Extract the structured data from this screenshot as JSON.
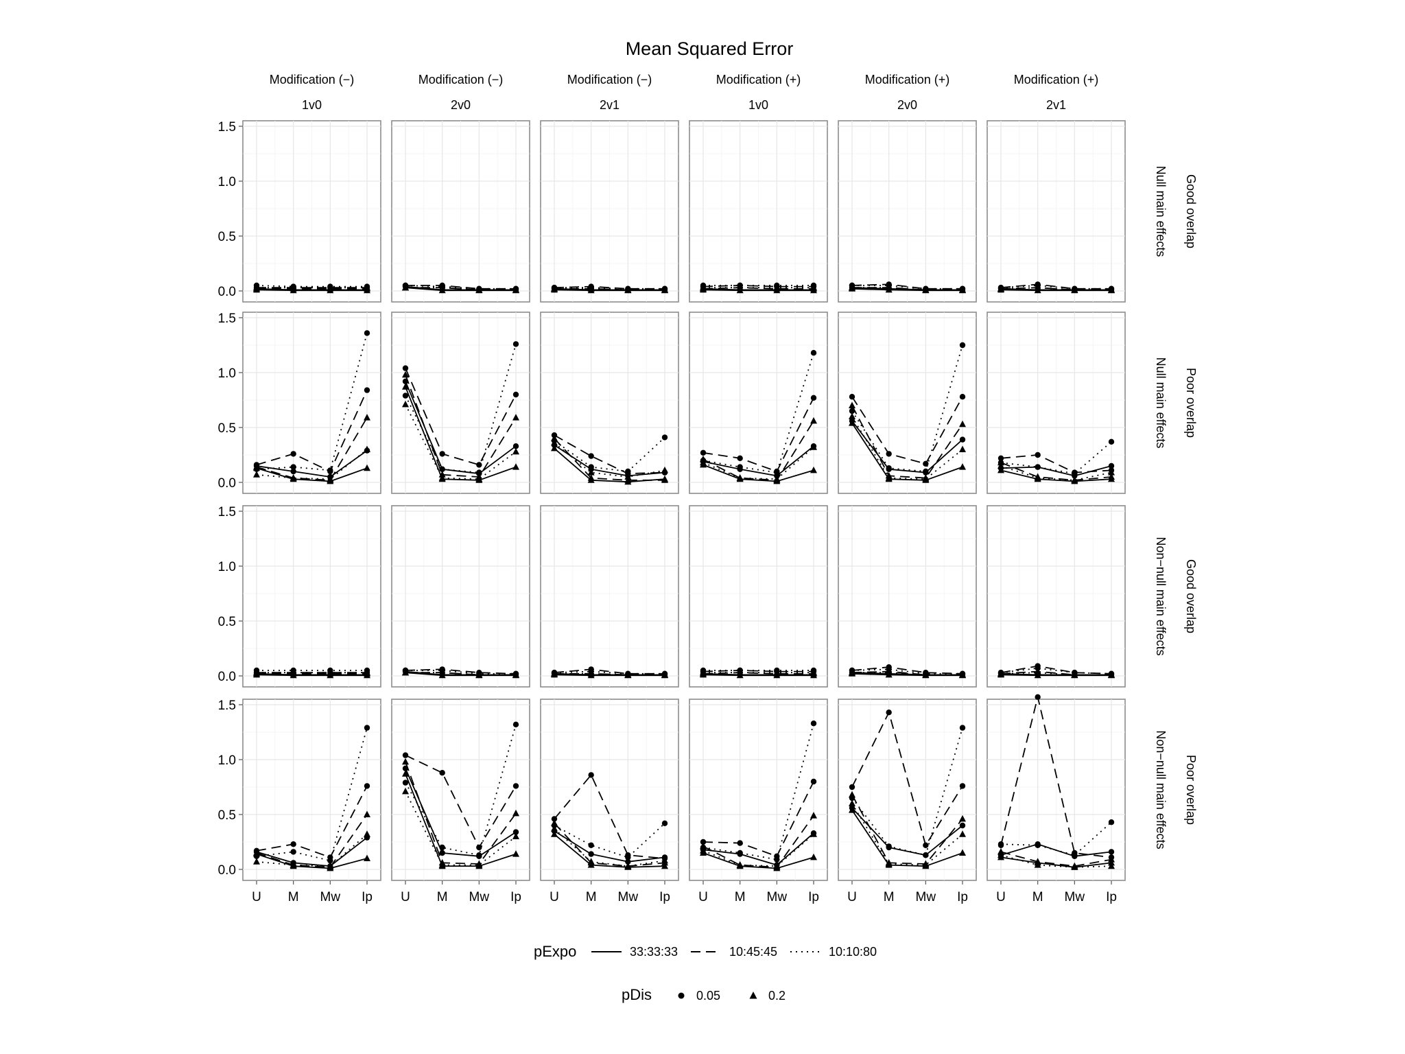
{
  "chart_data": {
    "type": "line",
    "title": "Mean Squared Error",
    "categories": [
      "U",
      "M",
      "Mw",
      "Ip"
    ],
    "y_ticks": [
      "0.0",
      "0.5",
      "1.0",
      "1.5"
    ],
    "ylim": [
      -0.1,
      1.55
    ],
    "columns": [
      {
        "top": "Modification (−)",
        "bottom": "1v0"
      },
      {
        "top": "Modification (−)",
        "bottom": "2v0"
      },
      {
        "top": "Modification (−)",
        "bottom": "2v1"
      },
      {
        "top": "Modification (+)",
        "bottom": "1v0"
      },
      {
        "top": "Modification (+)",
        "bottom": "2v0"
      },
      {
        "top": "Modification (+)",
        "bottom": "2v1"
      }
    ],
    "rows": [
      {
        "outer": "Good overlap",
        "inner": "Null main effects"
      },
      {
        "outer": "Poor overlap",
        "inner": "Null main effects"
      },
      {
        "outer": "Good overlap",
        "inner": "Non−null main effects"
      },
      {
        "outer": "Poor overlap",
        "inner": "Non−null main effects"
      }
    ],
    "legend": {
      "pExpo_title": "pExpo",
      "pExpo": [
        {
          "label": "33:33:33",
          "dash": "solid"
        },
        {
          "label": "10:45:45",
          "dash": "dashed"
        },
        {
          "label": "10:10:80",
          "dash": "dotted"
        }
      ],
      "pDis_title": "pDis",
      "pDis": [
        {
          "label": "0.05",
          "shape": "circle"
        },
        {
          "label": "0.2",
          "shape": "triangle"
        }
      ]
    },
    "series_order": [
      {
        "pExpo": "33:33:33",
        "pDis": "0.05"
      },
      {
        "pExpo": "33:33:33",
        "pDis": "0.2"
      },
      {
        "pExpo": "10:45:45",
        "pDis": "0.05"
      },
      {
        "pExpo": "10:45:45",
        "pDis": "0.2"
      },
      {
        "pExpo": "10:10:80",
        "pDis": "0.05"
      },
      {
        "pExpo": "10:10:80",
        "pDis": "0.2"
      }
    ],
    "panels": [
      [
        [
          [
            0.02,
            0.01,
            0.01,
            0.01
          ],
          [
            0.01,
            0.005,
            0.005,
            0.005
          ],
          [
            0.03,
            0.03,
            0.03,
            0.03
          ],
          [
            0.02,
            0.02,
            0.02,
            0.02
          ],
          [
            0.05,
            0.04,
            0.04,
            0.04
          ],
          [
            0.03,
            0.03,
            0.03,
            0.03
          ]
        ],
        [
          [
            0.04,
            0.01,
            0.01,
            0.01
          ],
          [
            0.03,
            0.005,
            0.005,
            0.005
          ],
          [
            0.05,
            0.05,
            0.02,
            0.02
          ],
          [
            0.03,
            0.03,
            0.01,
            0.01
          ],
          [
            0.05,
            0.04,
            0.02,
            0.02
          ],
          [
            0.03,
            0.03,
            0.01,
            0.01
          ]
        ],
        [
          [
            0.02,
            0.01,
            0.01,
            0.01
          ],
          [
            0.01,
            0.005,
            0.005,
            0.005
          ],
          [
            0.03,
            0.04,
            0.02,
            0.02
          ],
          [
            0.02,
            0.02,
            0.01,
            0.01
          ],
          [
            0.03,
            0.03,
            0.02,
            0.02
          ],
          [
            0.02,
            0.02,
            0.01,
            0.01
          ]
        ],
        [
          [
            0.02,
            0.01,
            0.01,
            0.01
          ],
          [
            0.01,
            0.005,
            0.005,
            0.005
          ],
          [
            0.04,
            0.05,
            0.04,
            0.04
          ],
          [
            0.02,
            0.03,
            0.02,
            0.02
          ],
          [
            0.05,
            0.05,
            0.05,
            0.05
          ],
          [
            0.03,
            0.03,
            0.03,
            0.03
          ]
        ],
        [
          [
            0.03,
            0.02,
            0.01,
            0.01
          ],
          [
            0.02,
            0.01,
            0.005,
            0.005
          ],
          [
            0.05,
            0.06,
            0.02,
            0.02
          ],
          [
            0.03,
            0.03,
            0.01,
            0.01
          ],
          [
            0.05,
            0.05,
            0.02,
            0.02
          ],
          [
            0.03,
            0.03,
            0.01,
            0.01
          ]
        ],
        [
          [
            0.02,
            0.01,
            0.01,
            0.01
          ],
          [
            0.01,
            0.005,
            0.005,
            0.005
          ],
          [
            0.03,
            0.06,
            0.02,
            0.02
          ],
          [
            0.02,
            0.03,
            0.01,
            0.01
          ],
          [
            0.03,
            0.05,
            0.02,
            0.02
          ],
          [
            0.02,
            0.03,
            0.01,
            0.01
          ]
        ]
      ],
      [
        [
          [
            0.15,
            0.1,
            0.05,
            0.29
          ],
          [
            0.13,
            0.03,
            0.01,
            0.13
          ],
          [
            0.16,
            0.26,
            0.1,
            0.84
          ],
          [
            0.14,
            0.04,
            0.02,
            0.59
          ],
          [
            0.12,
            0.14,
            0.11,
            1.36
          ],
          [
            0.07,
            0.04,
            0.03,
            0.3
          ]
        ],
        [
          [
            0.92,
            0.12,
            0.08,
            0.33
          ],
          [
            0.87,
            0.03,
            0.02,
            0.14
          ],
          [
            1.04,
            0.26,
            0.16,
            0.8
          ],
          [
            0.98,
            0.07,
            0.05,
            0.59
          ],
          [
            0.79,
            0.12,
            0.09,
            1.26
          ],
          [
            0.71,
            0.04,
            0.03,
            0.28
          ]
        ],
        [
          [
            0.34,
            0.12,
            0.06,
            0.09
          ],
          [
            0.31,
            0.02,
            0.005,
            0.03
          ],
          [
            0.43,
            0.24,
            0.08,
            0.09
          ],
          [
            0.4,
            0.04,
            0.02,
            0.02
          ],
          [
            0.38,
            0.14,
            0.1,
            0.41
          ],
          [
            0.36,
            0.09,
            0.05,
            0.11
          ]
        ],
        [
          [
            0.19,
            0.12,
            0.06,
            0.33
          ],
          [
            0.16,
            0.03,
            0.01,
            0.11
          ],
          [
            0.27,
            0.22,
            0.1,
            0.77
          ],
          [
            0.21,
            0.04,
            0.02,
            0.56
          ],
          [
            0.2,
            0.14,
            0.09,
            1.18
          ],
          [
            0.18,
            0.04,
            0.03,
            0.32
          ]
        ],
        [
          [
            0.56,
            0.12,
            0.09,
            0.39
          ],
          [
            0.54,
            0.03,
            0.02,
            0.14
          ],
          [
            0.78,
            0.26,
            0.17,
            0.78
          ],
          [
            0.7,
            0.06,
            0.04,
            0.53
          ],
          [
            0.65,
            0.13,
            0.1,
            1.25
          ],
          [
            0.6,
            0.04,
            0.03,
            0.3
          ]
        ],
        [
          [
            0.13,
            0.14,
            0.06,
            0.15
          ],
          [
            0.11,
            0.03,
            0.01,
            0.03
          ],
          [
            0.22,
            0.25,
            0.09,
            0.11
          ],
          [
            0.18,
            0.05,
            0.02,
            0.05
          ],
          [
            0.18,
            0.14,
            0.08,
            0.37
          ],
          [
            0.15,
            0.04,
            0.02,
            0.09
          ]
        ]
      ],
      [
        [
          [
            0.02,
            0.01,
            0.01,
            0.01
          ],
          [
            0.01,
            0.005,
            0.005,
            0.005
          ],
          [
            0.03,
            0.03,
            0.03,
            0.03
          ],
          [
            0.02,
            0.02,
            0.02,
            0.02
          ],
          [
            0.05,
            0.05,
            0.05,
            0.05
          ],
          [
            0.03,
            0.03,
            0.03,
            0.03
          ]
        ],
        [
          [
            0.04,
            0.01,
            0.01,
            0.01
          ],
          [
            0.03,
            0.005,
            0.005,
            0.005
          ],
          [
            0.05,
            0.06,
            0.03,
            0.02
          ],
          [
            0.03,
            0.03,
            0.01,
            0.01
          ],
          [
            0.05,
            0.05,
            0.02,
            0.02
          ],
          [
            0.03,
            0.03,
            0.01,
            0.01
          ]
        ],
        [
          [
            0.02,
            0.01,
            0.01,
            0.01
          ],
          [
            0.01,
            0.005,
            0.005,
            0.005
          ],
          [
            0.03,
            0.06,
            0.02,
            0.02
          ],
          [
            0.02,
            0.02,
            0.01,
            0.01
          ],
          [
            0.03,
            0.04,
            0.02,
            0.02
          ],
          [
            0.02,
            0.02,
            0.01,
            0.01
          ]
        ],
        [
          [
            0.02,
            0.01,
            0.01,
            0.01
          ],
          [
            0.01,
            0.005,
            0.005,
            0.005
          ],
          [
            0.04,
            0.05,
            0.04,
            0.04
          ],
          [
            0.02,
            0.03,
            0.02,
            0.02
          ],
          [
            0.05,
            0.05,
            0.05,
            0.05
          ],
          [
            0.03,
            0.03,
            0.03,
            0.03
          ]
        ],
        [
          [
            0.03,
            0.02,
            0.01,
            0.01
          ],
          [
            0.02,
            0.01,
            0.005,
            0.005
          ],
          [
            0.05,
            0.08,
            0.03,
            0.02
          ],
          [
            0.03,
            0.04,
            0.01,
            0.01
          ],
          [
            0.05,
            0.06,
            0.02,
            0.02
          ],
          [
            0.03,
            0.03,
            0.01,
            0.01
          ]
        ],
        [
          [
            0.02,
            0.01,
            0.01,
            0.01
          ],
          [
            0.01,
            0.005,
            0.005,
            0.005
          ],
          [
            0.03,
            0.09,
            0.03,
            0.02
          ],
          [
            0.02,
            0.04,
            0.01,
            0.01
          ],
          [
            0.03,
            0.07,
            0.03,
            0.02
          ],
          [
            0.02,
            0.03,
            0.01,
            0.01
          ]
        ]
      ],
      [
        [
          [
            0.16,
            0.06,
            0.03,
            0.29
          ],
          [
            0.14,
            0.03,
            0.01,
            0.1
          ],
          [
            0.17,
            0.23,
            0.11,
            0.76
          ],
          [
            0.15,
            0.04,
            0.02,
            0.5
          ],
          [
            0.12,
            0.16,
            0.08,
            1.29
          ],
          [
            0.07,
            0.04,
            0.03,
            0.32
          ]
        ],
        [
          [
            0.92,
            0.15,
            0.12,
            0.34
          ],
          [
            0.87,
            0.03,
            0.03,
            0.14
          ],
          [
            1.04,
            0.88,
            0.2,
            0.76
          ],
          [
            0.98,
            0.06,
            0.05,
            0.51
          ],
          [
            0.79,
            0.2,
            0.13,
            1.32
          ],
          [
            0.71,
            0.04,
            0.04,
            0.3
          ]
        ],
        [
          [
            0.35,
            0.14,
            0.07,
            0.11
          ],
          [
            0.32,
            0.04,
            0.02,
            0.03
          ],
          [
            0.46,
            0.86,
            0.13,
            0.1
          ],
          [
            0.42,
            0.06,
            0.03,
            0.06
          ],
          [
            0.4,
            0.22,
            0.11,
            0.42
          ],
          [
            0.37,
            0.07,
            0.03,
            0.08
          ]
        ],
        [
          [
            0.18,
            0.14,
            0.04,
            0.33
          ],
          [
            0.15,
            0.03,
            0.01,
            0.11
          ],
          [
            0.25,
            0.24,
            0.12,
            0.8
          ],
          [
            0.21,
            0.04,
            0.02,
            0.49
          ],
          [
            0.2,
            0.15,
            0.09,
            1.33
          ],
          [
            0.17,
            0.04,
            0.03,
            0.32
          ]
        ],
        [
          [
            0.56,
            0.2,
            0.13,
            0.4
          ],
          [
            0.54,
            0.04,
            0.03,
            0.15
          ],
          [
            0.75,
            1.43,
            0.22,
            0.76
          ],
          [
            0.68,
            0.06,
            0.05,
            0.46
          ],
          [
            0.65,
            0.21,
            0.13,
            1.29
          ],
          [
            0.6,
            0.05,
            0.04,
            0.32
          ]
        ],
        [
          [
            0.13,
            0.23,
            0.12,
            0.16
          ],
          [
            0.11,
            0.06,
            0.02,
            0.06
          ],
          [
            0.22,
            1.57,
            0.15,
            0.11
          ],
          [
            0.16,
            0.07,
            0.03,
            0.09
          ],
          [
            0.23,
            0.22,
            0.13,
            0.43
          ],
          [
            0.13,
            0.04,
            0.02,
            0.03
          ]
        ]
      ]
    ]
  }
}
